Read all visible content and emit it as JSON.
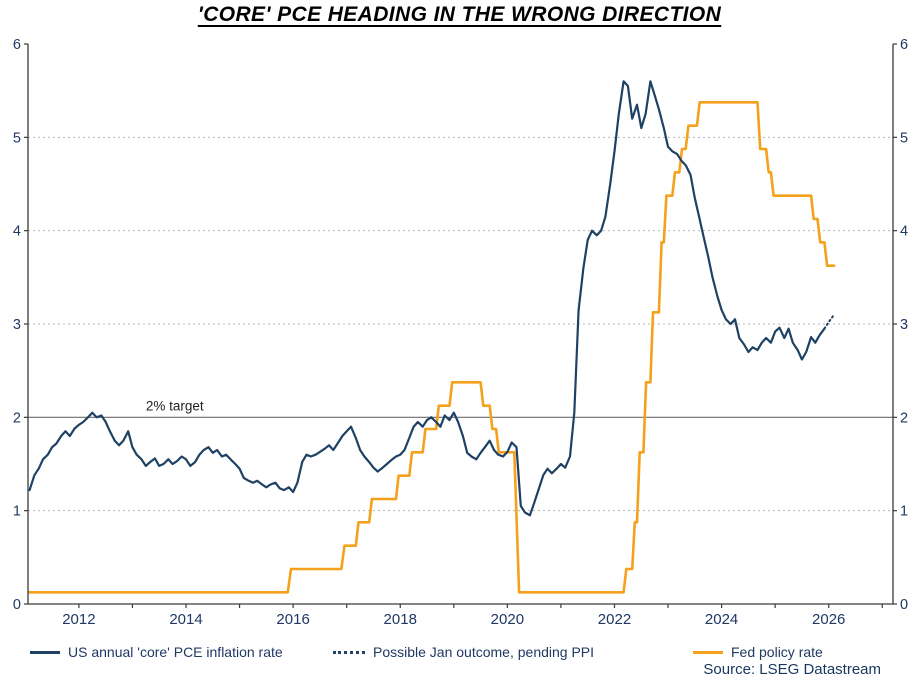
{
  "title": "'CORE' PCE HEADING IN THE WRONG DIRECTION",
  "source": "Source: LSEG Datastream",
  "colors": {
    "pce": "#1e4164",
    "fed": "#f5a11c",
    "grid": "#b5b5b5",
    "axis": "#3a3a3a",
    "tick_text": "#1f3864",
    "target_line": "#6e6e6e",
    "annotation_text": "#222222"
  },
  "chart_data": {
    "type": "line",
    "title": "'CORE' PCE HEADING IN THE WRONG DIRECTION",
    "xlabel": "",
    "ylabel": "",
    "xlim": [
      2011.05,
      2027.2
    ],
    "ylim": [
      0,
      6
    ],
    "grid": "horizontal-dashed",
    "legend_position": "bottom",
    "x_tick_positions": [
      2012,
      2014,
      2016,
      2018,
      2020,
      2022,
      2024,
      2026
    ],
    "x_tick_labels": [
      "2012",
      "2014",
      "2016",
      "2018",
      "2020",
      "2022",
      "2024",
      "2026"
    ],
    "x_minor_ticks": [
      2012,
      2013,
      2014,
      2015,
      2016,
      2017,
      2018,
      2019,
      2020,
      2021,
      2022,
      2023,
      2024,
      2025,
      2026,
      2027
    ],
    "y_ticks": [
      0,
      1,
      2,
      3,
      4,
      5,
      6
    ],
    "grid_y_dashed": [
      1,
      3,
      4,
      5
    ],
    "target": {
      "value": 2,
      "label": "2% target",
      "label_x": 2013.25
    },
    "series": [
      {
        "id": "pce-inflation-line",
        "name": "US annual 'core' PCE inflation rate",
        "color": "#1e4164",
        "width": 2.2,
        "dash": null,
        "points": [
          [
            2011.08,
            1.22
          ],
          [
            2011.17,
            1.38
          ],
          [
            2011.25,
            1.45
          ],
          [
            2011.33,
            1.55
          ],
          [
            2011.42,
            1.6
          ],
          [
            2011.5,
            1.68
          ],
          [
            2011.58,
            1.72
          ],
          [
            2011.67,
            1.8
          ],
          [
            2011.75,
            1.85
          ],
          [
            2011.83,
            1.8
          ],
          [
            2011.92,
            1.88
          ],
          [
            2012.0,
            1.92
          ],
          [
            2012.08,
            1.95
          ],
          [
            2012.17,
            2.0
          ],
          [
            2012.25,
            2.05
          ],
          [
            2012.33,
            2.0
          ],
          [
            2012.42,
            2.02
          ],
          [
            2012.5,
            1.95
          ],
          [
            2012.58,
            1.85
          ],
          [
            2012.67,
            1.75
          ],
          [
            2012.75,
            1.7
          ],
          [
            2012.83,
            1.75
          ],
          [
            2012.92,
            1.85
          ],
          [
            2013.0,
            1.68
          ],
          [
            2013.08,
            1.6
          ],
          [
            2013.17,
            1.55
          ],
          [
            2013.25,
            1.48
          ],
          [
            2013.33,
            1.52
          ],
          [
            2013.42,
            1.56
          ],
          [
            2013.5,
            1.48
          ],
          [
            2013.58,
            1.5
          ],
          [
            2013.67,
            1.55
          ],
          [
            2013.75,
            1.5
          ],
          [
            2013.83,
            1.53
          ],
          [
            2013.92,
            1.58
          ],
          [
            2014.0,
            1.55
          ],
          [
            2014.08,
            1.48
          ],
          [
            2014.17,
            1.52
          ],
          [
            2014.25,
            1.6
          ],
          [
            2014.33,
            1.65
          ],
          [
            2014.42,
            1.68
          ],
          [
            2014.5,
            1.62
          ],
          [
            2014.58,
            1.65
          ],
          [
            2014.67,
            1.58
          ],
          [
            2014.75,
            1.6
          ],
          [
            2014.83,
            1.55
          ],
          [
            2014.92,
            1.5
          ],
          [
            2015.0,
            1.45
          ],
          [
            2015.08,
            1.35
          ],
          [
            2015.17,
            1.32
          ],
          [
            2015.25,
            1.3
          ],
          [
            2015.33,
            1.32
          ],
          [
            2015.42,
            1.28
          ],
          [
            2015.5,
            1.25
          ],
          [
            2015.58,
            1.28
          ],
          [
            2015.67,
            1.3
          ],
          [
            2015.75,
            1.24
          ],
          [
            2015.83,
            1.22
          ],
          [
            2015.92,
            1.25
          ],
          [
            2016.0,
            1.2
          ],
          [
            2016.08,
            1.3
          ],
          [
            2016.17,
            1.52
          ],
          [
            2016.25,
            1.6
          ],
          [
            2016.33,
            1.58
          ],
          [
            2016.42,
            1.6
          ],
          [
            2016.5,
            1.63
          ],
          [
            2016.58,
            1.66
          ],
          [
            2016.67,
            1.7
          ],
          [
            2016.75,
            1.65
          ],
          [
            2016.83,
            1.72
          ],
          [
            2016.92,
            1.8
          ],
          [
            2017.0,
            1.85
          ],
          [
            2017.08,
            1.9
          ],
          [
            2017.17,
            1.78
          ],
          [
            2017.25,
            1.65
          ],
          [
            2017.33,
            1.58
          ],
          [
            2017.42,
            1.52
          ],
          [
            2017.5,
            1.46
          ],
          [
            2017.58,
            1.42
          ],
          [
            2017.67,
            1.46
          ],
          [
            2017.75,
            1.5
          ],
          [
            2017.83,
            1.54
          ],
          [
            2017.92,
            1.58
          ],
          [
            2018.0,
            1.6
          ],
          [
            2018.08,
            1.65
          ],
          [
            2018.17,
            1.78
          ],
          [
            2018.25,
            1.9
          ],
          [
            2018.33,
            1.95
          ],
          [
            2018.42,
            1.9
          ],
          [
            2018.5,
            1.97
          ],
          [
            2018.58,
            2.0
          ],
          [
            2018.67,
            1.95
          ],
          [
            2018.75,
            1.9
          ],
          [
            2018.83,
            2.02
          ],
          [
            2018.92,
            1.97
          ],
          [
            2019.0,
            2.05
          ],
          [
            2019.08,
            1.95
          ],
          [
            2019.17,
            1.8
          ],
          [
            2019.25,
            1.62
          ],
          [
            2019.33,
            1.58
          ],
          [
            2019.42,
            1.55
          ],
          [
            2019.5,
            1.62
          ],
          [
            2019.58,
            1.68
          ],
          [
            2019.67,
            1.75
          ],
          [
            2019.75,
            1.65
          ],
          [
            2019.83,
            1.6
          ],
          [
            2019.92,
            1.58
          ],
          [
            2020.0,
            1.63
          ],
          [
            2020.08,
            1.73
          ],
          [
            2020.17,
            1.68
          ],
          [
            2020.25,
            1.05
          ],
          [
            2020.33,
            0.98
          ],
          [
            2020.42,
            0.95
          ],
          [
            2020.5,
            1.08
          ],
          [
            2020.58,
            1.22
          ],
          [
            2020.67,
            1.38
          ],
          [
            2020.75,
            1.45
          ],
          [
            2020.83,
            1.4
          ],
          [
            2020.92,
            1.45
          ],
          [
            2021.0,
            1.5
          ],
          [
            2021.08,
            1.46
          ],
          [
            2021.17,
            1.58
          ],
          [
            2021.25,
            2.05
          ],
          [
            2021.33,
            3.15
          ],
          [
            2021.42,
            3.6
          ],
          [
            2021.5,
            3.9
          ],
          [
            2021.58,
            4.0
          ],
          [
            2021.67,
            3.95
          ],
          [
            2021.75,
            4.0
          ],
          [
            2021.83,
            4.15
          ],
          [
            2021.92,
            4.5
          ],
          [
            2022.0,
            4.85
          ],
          [
            2022.08,
            5.25
          ],
          [
            2022.17,
            5.6
          ],
          [
            2022.25,
            5.55
          ],
          [
            2022.33,
            5.2
          ],
          [
            2022.42,
            5.35
          ],
          [
            2022.5,
            5.1
          ],
          [
            2022.58,
            5.25
          ],
          [
            2022.67,
            5.6
          ],
          [
            2022.75,
            5.45
          ],
          [
            2022.83,
            5.3
          ],
          [
            2022.92,
            5.1
          ],
          [
            2023.0,
            4.9
          ],
          [
            2023.08,
            4.85
          ],
          [
            2023.17,
            4.82
          ],
          [
            2023.25,
            4.75
          ],
          [
            2023.33,
            4.7
          ],
          [
            2023.42,
            4.6
          ],
          [
            2023.5,
            4.35
          ],
          [
            2023.58,
            4.15
          ],
          [
            2023.67,
            3.92
          ],
          [
            2023.75,
            3.72
          ],
          [
            2023.83,
            3.5
          ],
          [
            2023.92,
            3.3
          ],
          [
            2024.0,
            3.15
          ],
          [
            2024.08,
            3.05
          ],
          [
            2024.17,
            3.0
          ],
          [
            2024.25,
            3.05
          ],
          [
            2024.33,
            2.85
          ],
          [
            2024.42,
            2.78
          ],
          [
            2024.5,
            2.7
          ],
          [
            2024.58,
            2.75
          ],
          [
            2024.67,
            2.72
          ],
          [
            2024.75,
            2.8
          ],
          [
            2024.83,
            2.85
          ],
          [
            2024.92,
            2.8
          ],
          [
            2025.0,
            2.92
          ],
          [
            2025.08,
            2.96
          ],
          [
            2025.17,
            2.85
          ],
          [
            2025.25,
            2.95
          ],
          [
            2025.33,
            2.8
          ],
          [
            2025.42,
            2.72
          ],
          [
            2025.5,
            2.62
          ],
          [
            2025.58,
            2.7
          ],
          [
            2025.67,
            2.86
          ],
          [
            2025.75,
            2.8
          ],
          [
            2025.83,
            2.88
          ],
          [
            2025.92,
            2.95
          ]
        ]
      },
      {
        "id": "jan-outcome-dotted-line",
        "name": "Possible Jan outcome, pending PPI",
        "color": "#1e4164",
        "width": 2,
        "dash": "1.5,3",
        "points": [
          [
            2025.92,
            2.95
          ],
          [
            2026.0,
            3.02
          ],
          [
            2026.1,
            3.1
          ]
        ]
      },
      {
        "id": "fed-policy-rate-line",
        "name": "Fed policy rate",
        "color": "#f5a11c",
        "width": 2.6,
        "dash": null,
        "points": [
          [
            2011.07,
            0.125
          ],
          [
            2015.9,
            0.125
          ],
          [
            2015.96,
            0.375
          ],
          [
            2016.9,
            0.375
          ],
          [
            2016.96,
            0.625
          ],
          [
            2017.17,
            0.625
          ],
          [
            2017.22,
            0.875
          ],
          [
            2017.42,
            0.875
          ],
          [
            2017.47,
            1.125
          ],
          [
            2017.92,
            1.125
          ],
          [
            2017.97,
            1.375
          ],
          [
            2018.17,
            1.375
          ],
          [
            2018.22,
            1.625
          ],
          [
            2018.42,
            1.625
          ],
          [
            2018.47,
            1.875
          ],
          [
            2018.67,
            1.875
          ],
          [
            2018.72,
            2.125
          ],
          [
            2018.92,
            2.125
          ],
          [
            2018.97,
            2.375
          ],
          [
            2019.5,
            2.375
          ],
          [
            2019.55,
            2.125
          ],
          [
            2019.67,
            2.125
          ],
          [
            2019.72,
            1.875
          ],
          [
            2019.79,
            1.875
          ],
          [
            2019.84,
            1.625
          ],
          [
            2020.13,
            1.625
          ],
          [
            2020.22,
            0.125
          ],
          [
            2022.17,
            0.125
          ],
          [
            2022.22,
            0.375
          ],
          [
            2022.33,
            0.375
          ],
          [
            2022.38,
            0.875
          ],
          [
            2022.42,
            0.875
          ],
          [
            2022.47,
            1.625
          ],
          [
            2022.54,
            1.625
          ],
          [
            2022.59,
            2.375
          ],
          [
            2022.67,
            2.375
          ],
          [
            2022.72,
            3.125
          ],
          [
            2022.83,
            3.125
          ],
          [
            2022.88,
            3.875
          ],
          [
            2022.92,
            3.875
          ],
          [
            2022.97,
            4.375
          ],
          [
            2023.08,
            4.375
          ],
          [
            2023.13,
            4.625
          ],
          [
            2023.21,
            4.625
          ],
          [
            2023.26,
            4.875
          ],
          [
            2023.33,
            4.875
          ],
          [
            2023.38,
            5.125
          ],
          [
            2023.54,
            5.125
          ],
          [
            2023.59,
            5.375
          ],
          [
            2024.67,
            5.375
          ],
          [
            2024.72,
            4.875
          ],
          [
            2024.83,
            4.875
          ],
          [
            2024.88,
            4.625
          ],
          [
            2024.92,
            4.625
          ],
          [
            2024.97,
            4.375
          ],
          [
            2025.67,
            4.375
          ],
          [
            2025.72,
            4.125
          ],
          [
            2025.79,
            4.125
          ],
          [
            2025.84,
            3.875
          ],
          [
            2025.92,
            3.875
          ],
          [
            2025.97,
            3.625
          ],
          [
            2026.1,
            3.625
          ]
        ]
      }
    ]
  }
}
